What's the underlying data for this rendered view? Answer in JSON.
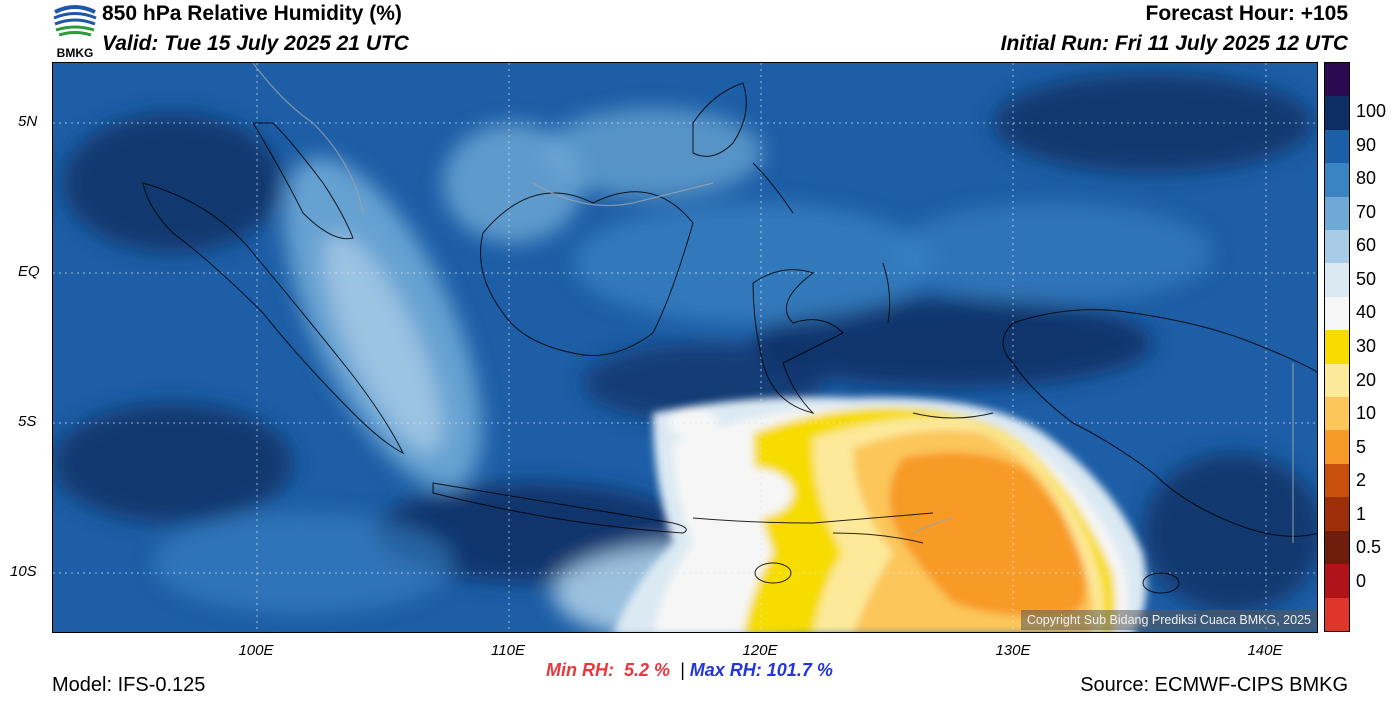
{
  "header": {
    "title": "850 hPa Relative Humidity (%)",
    "valid": "Valid: Tue 15 July 2025 21 UTC",
    "forecast_hour": "Forecast Hour: +105",
    "initial_run": "Initial Run: Fri 11 July 2025 12 UTC"
  },
  "logo": {
    "text": "BMKG"
  },
  "axes": {
    "lat_labels": [
      "5N",
      "EQ",
      "5S",
      "10S"
    ],
    "lon_labels": [
      "100E",
      "110E",
      "120E",
      "130E",
      "140E"
    ]
  },
  "colorbar": {
    "labels": [
      "100",
      "90",
      "80",
      "70",
      "60",
      "50",
      "40",
      "30",
      "20",
      "10",
      "5",
      "2",
      "1",
      "0.5",
      "0"
    ],
    "colors": [
      "#2b0a52",
      "#0c2e63",
      "#1a5fa8",
      "#3b84c4",
      "#6fa9d6",
      "#a9cce6",
      "#dbe9f3",
      "#f6f6f6",
      "#f7dc00",
      "#fde99a",
      "#fcc65a",
      "#f89a28",
      "#c84f0c",
      "#9c2f0a",
      "#6e1c0c",
      "#b0141a",
      "#e0352b"
    ]
  },
  "stats": {
    "min_label": "Min RH:",
    "min_value": "5.2 %",
    "separator": "|",
    "max_label": "Max RH:",
    "max_value": "101.7 %"
  },
  "footer": {
    "model": "Model: IFS-0.125",
    "source": "Source: ECMWF-CIPS BMKG",
    "copyright": "Copyright Sub Bidang Prediksi Cuaca BMKG, 2025"
  }
}
